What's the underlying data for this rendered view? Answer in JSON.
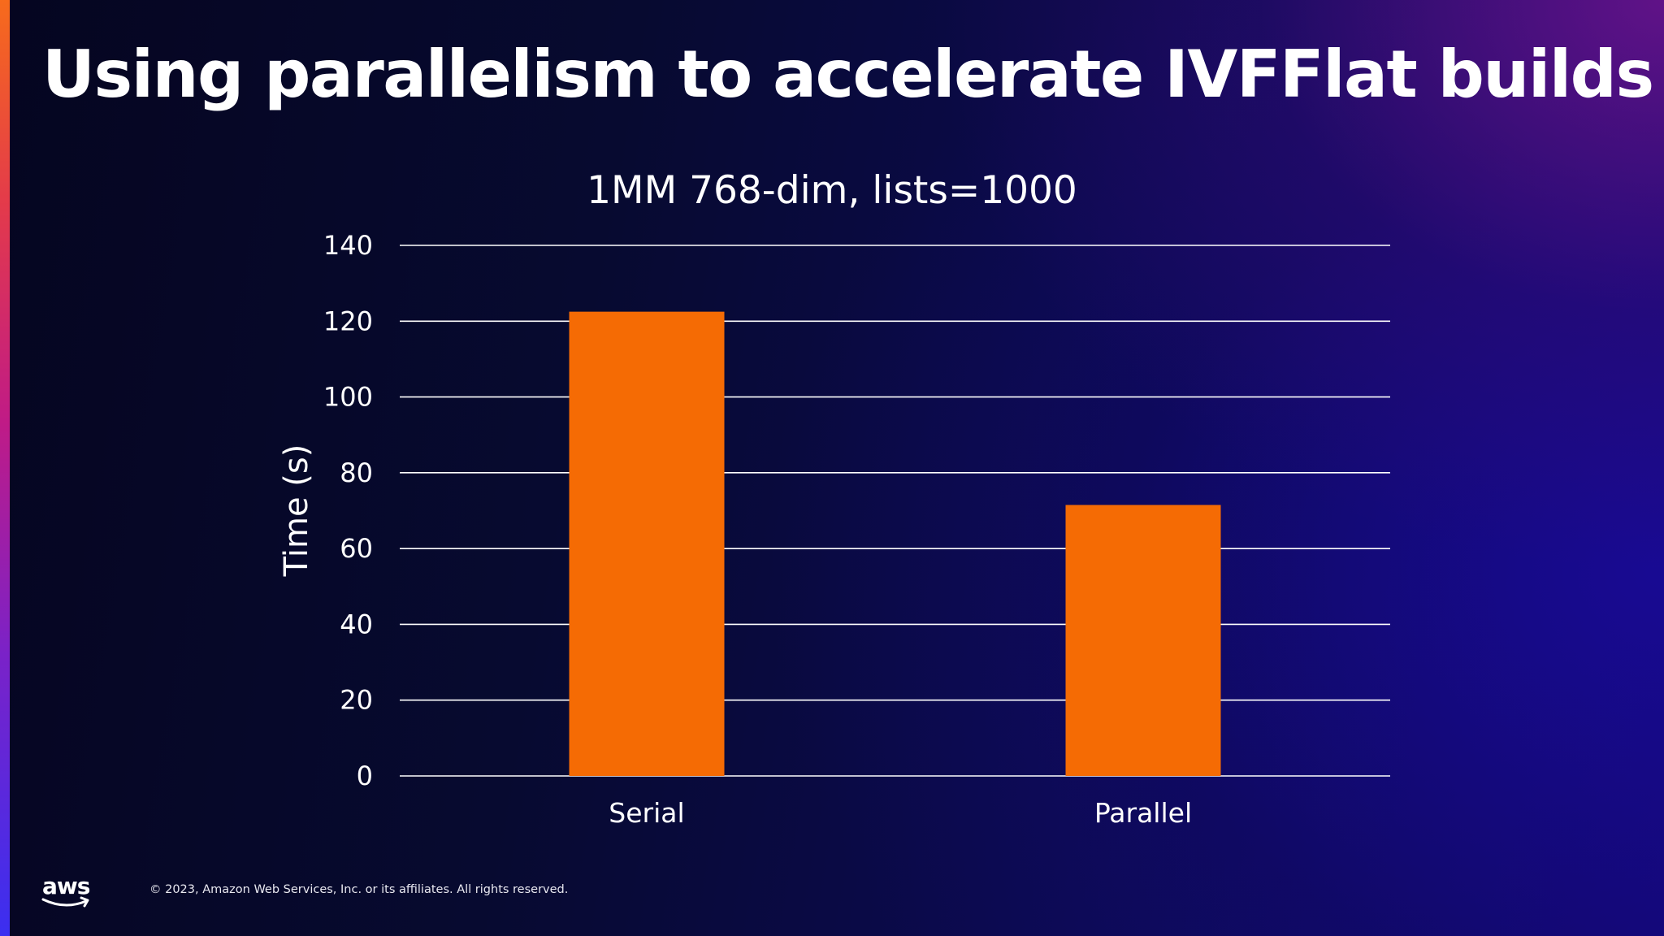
{
  "slide": {
    "title": "Using parallelism to accelerate IVFFlat builds",
    "logo_text": "aws",
    "copyright": "© 2023, Amazon Web Services, Inc. or its affiliates. All rights reserved."
  },
  "colors": {
    "bar": "#f56b04",
    "gridline": "#ffffff",
    "text": "#ffffff"
  },
  "chart_data": {
    "type": "bar",
    "title": "1MM 768-dim, lists=1000",
    "xlabel": "",
    "ylabel": "Time (s)",
    "categories": [
      "Serial",
      "Parallel"
    ],
    "values": [
      122.5,
      71.5
    ],
    "ylim": [
      0,
      140
    ],
    "yticks": [
      0,
      20,
      40,
      60,
      80,
      100,
      120,
      140
    ],
    "grid": true,
    "legend": "none"
  }
}
